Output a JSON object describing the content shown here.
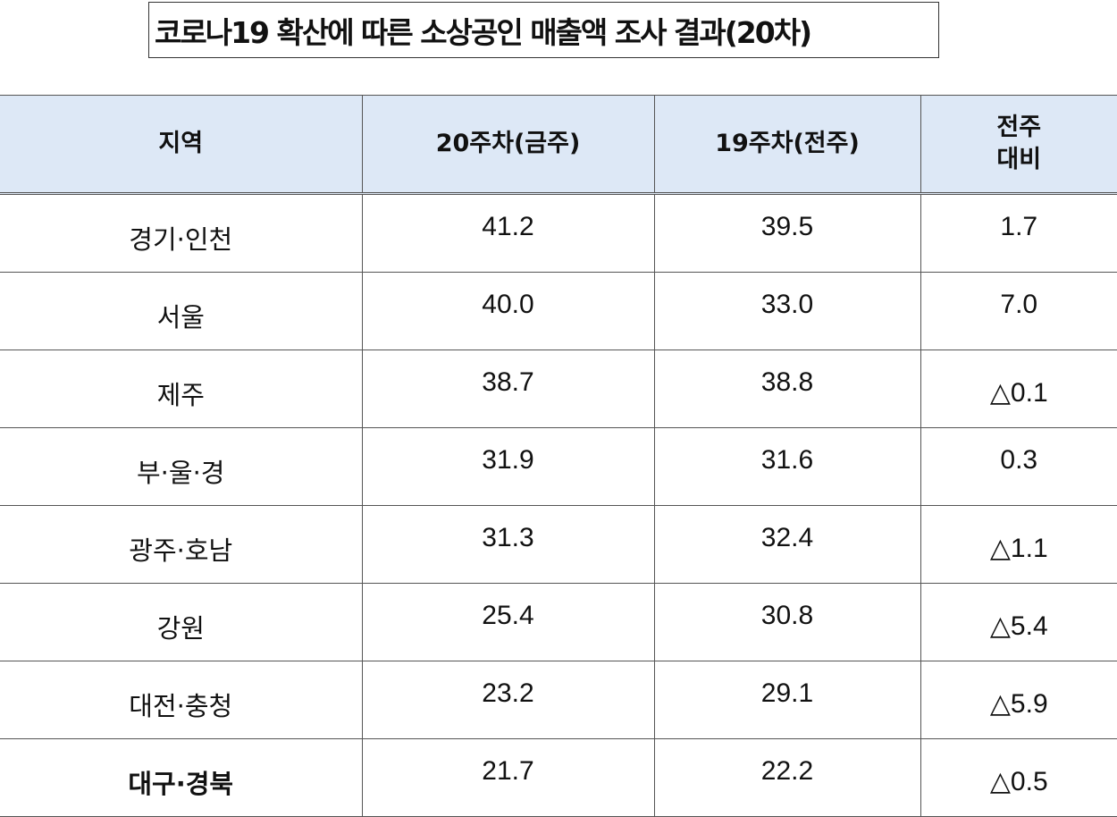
{
  "title": "코로나19 확산에 따른 소상공인 매출액 조사 결과(20차)",
  "table": {
    "headers": {
      "region": "지역",
      "week20": "20주차(금주)",
      "week19": "19주차(전주)",
      "change_line1": "전주",
      "change_line2": "대비"
    },
    "rows": [
      {
        "region": "경기·인천",
        "week20": "41.2",
        "week19": "39.5",
        "change": "1.7"
      },
      {
        "region": "서울",
        "week20": "40.0",
        "week19": "33.0",
        "change": "7.0"
      },
      {
        "region": "제주",
        "week20": "38.7",
        "week19": "38.8",
        "change": "△0.1"
      },
      {
        "region": "부·울·경",
        "week20": "31.9",
        "week19": "31.6",
        "change": "0.3"
      },
      {
        "region": "광주·호남",
        "week20": "31.3",
        "week19": "32.4",
        "change": "△1.1"
      },
      {
        "region": "강원",
        "week20": "25.4",
        "week19": "30.8",
        "change": "△5.4"
      },
      {
        "region": "대전·충청",
        "week20": "23.2",
        "week19": "29.1",
        "change": "△5.9"
      },
      {
        "region": "대구·경북",
        "week20": "21.7",
        "week19": "22.2",
        "change": "△0.5"
      }
    ],
    "highlighted_row_index": 7
  }
}
